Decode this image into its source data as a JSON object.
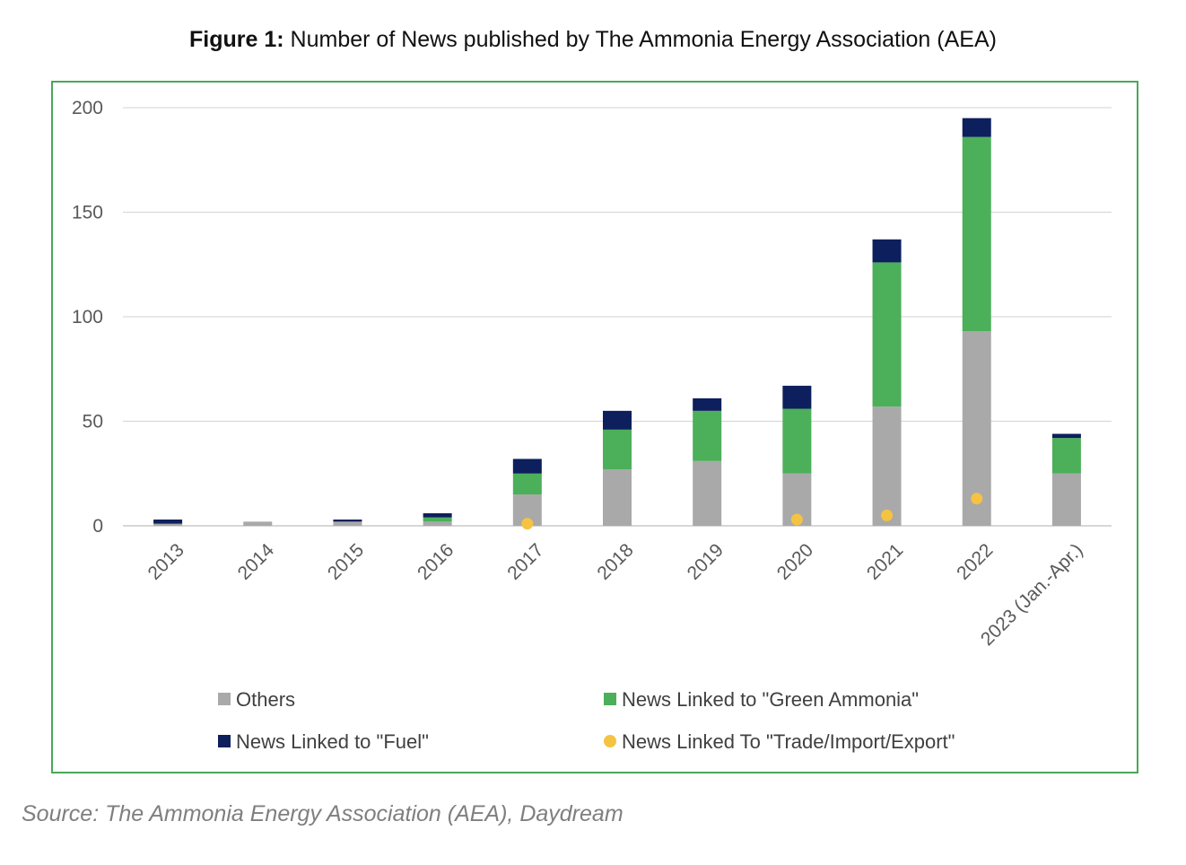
{
  "figure": {
    "label": "Figure 1:",
    "title": "Number of News published by The Ammonia Energy Association (AEA)"
  },
  "source": "Source: The Ammonia Energy Association (AEA), Daydream",
  "chart_data": {
    "type": "bar",
    "stacked": true,
    "categories": [
      "2013",
      "2014",
      "2015",
      "2016",
      "2017",
      "2018",
      "2019",
      "2020",
      "2021",
      "2022",
      "2023 (Jan.-Apr.)"
    ],
    "series": [
      {
        "name": "Others",
        "color": "#a9a9a9",
        "kind": "bar",
        "values": [
          1,
          2,
          2,
          2,
          15,
          27,
          31,
          25,
          57,
          93,
          25
        ]
      },
      {
        "name": "News Linked to \"Green Ammonia\"",
        "color": "#4caf5a",
        "kind": "bar",
        "values": [
          0,
          0,
          0,
          2,
          10,
          19,
          24,
          31,
          69,
          93,
          17
        ]
      },
      {
        "name": "News Linked to \"Fuel\"",
        "color": "#0d1f5c",
        "kind": "bar",
        "values": [
          2,
          0,
          1,
          2,
          7,
          9,
          6,
          11,
          11,
          9,
          2
        ]
      },
      {
        "name": "News Linked To \"Trade/Import/Export\"",
        "color": "#f5c342",
        "kind": "point",
        "values": [
          null,
          null,
          null,
          null,
          1,
          null,
          null,
          3,
          5,
          13,
          null
        ]
      }
    ],
    "ylim": [
      0,
      200
    ],
    "yticks": [
      0,
      50,
      100,
      150,
      200
    ],
    "grid": true,
    "legend_position": "bottom"
  }
}
